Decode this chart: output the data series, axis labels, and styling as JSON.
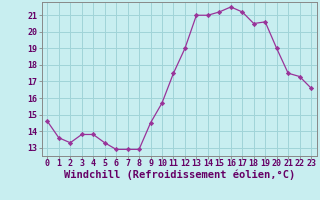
{
  "x": [
    0,
    1,
    2,
    3,
    4,
    5,
    6,
    7,
    8,
    9,
    10,
    11,
    12,
    13,
    14,
    15,
    16,
    17,
    18,
    19,
    20,
    21,
    22,
    23
  ],
  "y": [
    14.6,
    13.6,
    13.3,
    13.8,
    13.8,
    13.3,
    12.9,
    12.9,
    12.9,
    14.5,
    15.7,
    17.5,
    19.0,
    21.0,
    21.0,
    21.2,
    21.5,
    21.2,
    20.5,
    20.6,
    19.0,
    17.5,
    17.3,
    16.6
  ],
  "line_color": "#993399",
  "marker": "D",
  "marker_size": 2.2,
  "bg_color": "#c8eef0",
  "grid_color": "#a0d4d8",
  "xlabel": "Windchill (Refroidissement éolien,°C)",
  "xlabel_fontsize": 7.5,
  "xlim": [
    -0.5,
    23.5
  ],
  "ylim": [
    12.5,
    21.8
  ],
  "yticks": [
    13,
    14,
    15,
    16,
    17,
    18,
    19,
    20,
    21
  ],
  "xticks": [
    0,
    1,
    2,
    3,
    4,
    5,
    6,
    7,
    8,
    9,
    10,
    11,
    12,
    13,
    14,
    15,
    16,
    17,
    18,
    19,
    20,
    21,
    22,
    23
  ],
  "tick_fontsize": 6.0,
  "spine_color": "#888888"
}
